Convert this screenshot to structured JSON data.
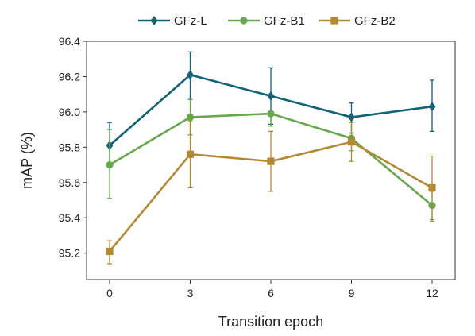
{
  "chart_data": {
    "type": "line",
    "title": "",
    "xlabel": "Transition epoch",
    "ylabel": "mAP (%)",
    "x": [
      0,
      3,
      6,
      9,
      12
    ],
    "x_tick_labels": [
      "0",
      "3",
      "6",
      "9",
      "12"
    ],
    "ylim": [
      95.05,
      96.4
    ],
    "y_ticks": [
      95.2,
      95.4,
      95.6,
      95.8,
      96.0,
      96.2,
      96.4
    ],
    "y_tick_labels": [
      "95.2",
      "95.4",
      "95.6",
      "95.8",
      "96.0",
      "96.2",
      "96.4"
    ],
    "grid": false,
    "legend_position": "top-center",
    "series": [
      {
        "name": "GFz-L",
        "color": "#12627a",
        "marker": "diamond",
        "values": [
          95.81,
          96.21,
          96.09,
          95.97,
          96.03
        ],
        "error_low": [
          95.69,
          96.07,
          95.93,
          95.88,
          95.89
        ],
        "error_high": [
          95.94,
          96.34,
          96.25,
          96.05,
          96.18
        ]
      },
      {
        "name": "GFz-B1",
        "color": "#67a84e",
        "marker": "circle",
        "values": [
          95.7,
          95.97,
          95.99,
          95.85,
          95.47
        ],
        "error_low": [
          95.51,
          95.87,
          95.92,
          95.78,
          95.38
        ],
        "error_high": [
          95.9,
          96.07,
          96.0,
          95.88,
          95.55
        ]
      },
      {
        "name": "GFz-B2",
        "color": "#b38934",
        "marker": "square",
        "values": [
          95.21,
          95.76,
          95.72,
          95.83,
          95.57
        ],
        "error_low": [
          95.14,
          95.57,
          95.55,
          95.72,
          95.39
        ],
        "error_high": [
          95.27,
          95.95,
          95.89,
          95.94,
          95.75
        ]
      }
    ]
  }
}
